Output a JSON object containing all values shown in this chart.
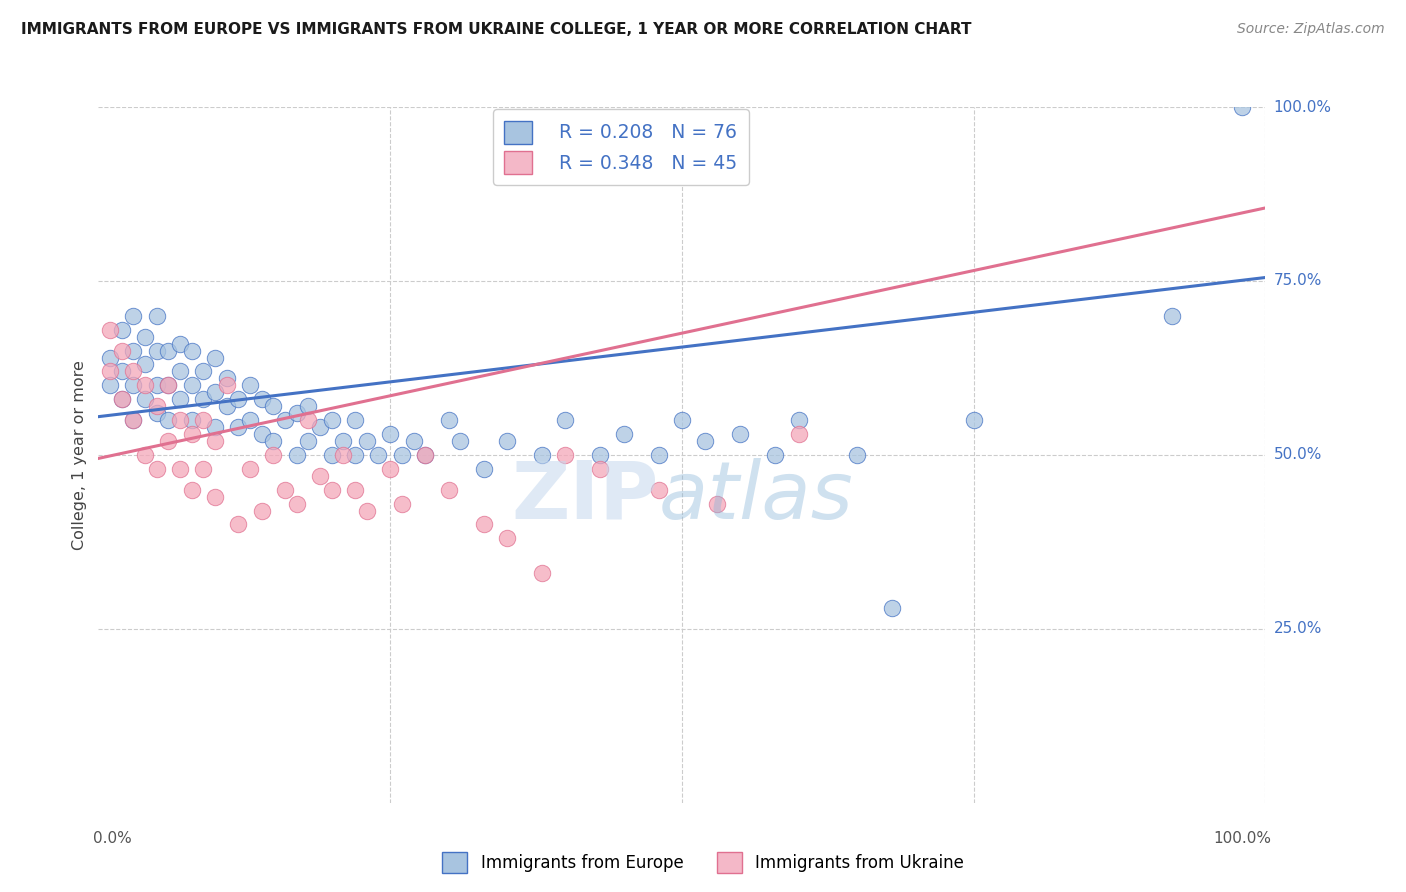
{
  "title": "IMMIGRANTS FROM EUROPE VS IMMIGRANTS FROM UKRAINE COLLEGE, 1 YEAR OR MORE CORRELATION CHART",
  "source": "Source: ZipAtlas.com",
  "ylabel": "College, 1 year or more",
  "xlim": [
    0,
    1
  ],
  "ylim": [
    0,
    1
  ],
  "ytick_values": [
    0,
    0.25,
    0.5,
    0.75,
    1.0
  ],
  "europe_R": 0.208,
  "europe_N": 76,
  "ukraine_R": 0.348,
  "ukraine_N": 45,
  "europe_color": "#a8c4e0",
  "ukraine_color": "#f4a7b9",
  "europe_line_color": "#4472c4",
  "ukraine_line_color": "#e07090",
  "legend_europe_face": "#a8c4e0",
  "legend_ukraine_face": "#f4b8c8",
  "background_color": "#ffffff",
  "grid_color": "#cccccc",
  "europe_x": [
    0.01,
    0.01,
    0.02,
    0.02,
    0.02,
    0.03,
    0.03,
    0.03,
    0.03,
    0.04,
    0.04,
    0.04,
    0.05,
    0.05,
    0.05,
    0.05,
    0.06,
    0.06,
    0.06,
    0.07,
    0.07,
    0.07,
    0.08,
    0.08,
    0.08,
    0.09,
    0.09,
    0.1,
    0.1,
    0.1,
    0.11,
    0.11,
    0.12,
    0.12,
    0.13,
    0.13,
    0.14,
    0.14,
    0.15,
    0.15,
    0.16,
    0.17,
    0.17,
    0.18,
    0.18,
    0.19,
    0.2,
    0.2,
    0.21,
    0.22,
    0.22,
    0.23,
    0.24,
    0.25,
    0.26,
    0.27,
    0.28,
    0.3,
    0.31,
    0.33,
    0.35,
    0.38,
    0.4,
    0.43,
    0.45,
    0.48,
    0.5,
    0.52,
    0.55,
    0.58,
    0.6,
    0.65,
    0.68,
    0.75,
    0.92,
    0.98
  ],
  "europe_y": [
    0.6,
    0.64,
    0.58,
    0.62,
    0.68,
    0.55,
    0.6,
    0.65,
    0.7,
    0.58,
    0.63,
    0.67,
    0.56,
    0.6,
    0.65,
    0.7,
    0.55,
    0.6,
    0.65,
    0.58,
    0.62,
    0.66,
    0.55,
    0.6,
    0.65,
    0.58,
    0.62,
    0.54,
    0.59,
    0.64,
    0.57,
    0.61,
    0.54,
    0.58,
    0.55,
    0.6,
    0.53,
    0.58,
    0.52,
    0.57,
    0.55,
    0.5,
    0.56,
    0.52,
    0.57,
    0.54,
    0.5,
    0.55,
    0.52,
    0.5,
    0.55,
    0.52,
    0.5,
    0.53,
    0.5,
    0.52,
    0.5,
    0.55,
    0.52,
    0.48,
    0.52,
    0.5,
    0.55,
    0.5,
    0.53,
    0.5,
    0.55,
    0.52,
    0.53,
    0.5,
    0.55,
    0.5,
    0.28,
    0.55,
    0.7,
    1.0
  ],
  "ukraine_x": [
    0.01,
    0.01,
    0.02,
    0.02,
    0.03,
    0.03,
    0.04,
    0.04,
    0.05,
    0.05,
    0.06,
    0.06,
    0.07,
    0.07,
    0.08,
    0.08,
    0.09,
    0.09,
    0.1,
    0.1,
    0.11,
    0.12,
    0.13,
    0.14,
    0.15,
    0.16,
    0.17,
    0.18,
    0.19,
    0.2,
    0.21,
    0.22,
    0.23,
    0.25,
    0.26,
    0.28,
    0.3,
    0.33,
    0.35,
    0.38,
    0.4,
    0.43,
    0.48,
    0.53,
    0.6
  ],
  "ukraine_y": [
    0.62,
    0.68,
    0.58,
    0.65,
    0.55,
    0.62,
    0.5,
    0.6,
    0.48,
    0.57,
    0.52,
    0.6,
    0.48,
    0.55,
    0.45,
    0.53,
    0.48,
    0.55,
    0.44,
    0.52,
    0.6,
    0.4,
    0.48,
    0.42,
    0.5,
    0.45,
    0.43,
    0.55,
    0.47,
    0.45,
    0.5,
    0.45,
    0.42,
    0.48,
    0.43,
    0.5,
    0.45,
    0.4,
    0.38,
    0.33,
    0.5,
    0.48,
    0.45,
    0.43,
    0.53
  ],
  "blue_line_x0": 0.0,
  "blue_line_y0": 0.555,
  "blue_line_x1": 1.0,
  "blue_line_y1": 0.755,
  "pink_line_x0": 0.0,
  "pink_line_y0": 0.495,
  "pink_line_x1": 1.0,
  "pink_line_y1": 0.855
}
